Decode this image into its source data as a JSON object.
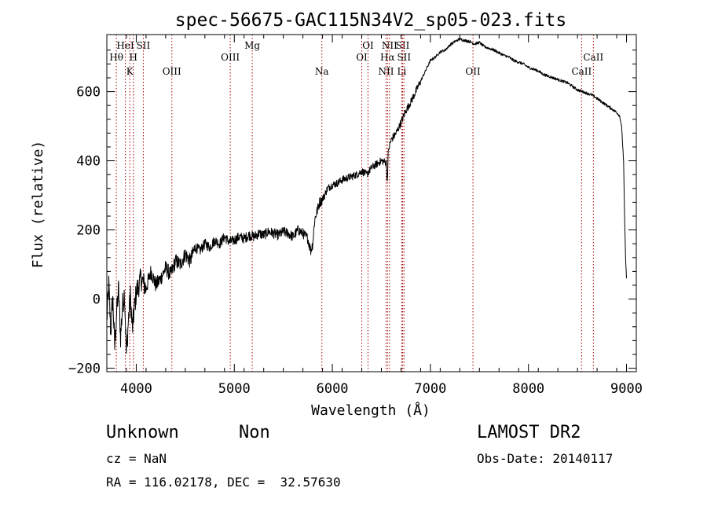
{
  "chart_data": {
    "type": "line",
    "title": "spec-56675-GAC115N34V2_sp05-023.fits",
    "xlabel": "Wavelength (Å)",
    "ylabel": "Flux (relative)",
    "xlim": [
      3700,
      9100
    ],
    "ylim": [
      -210,
      765
    ],
    "x_ticks": [
      4000,
      5000,
      6000,
      7000,
      8000,
      9000
    ],
    "x_tick_labels": [
      "4000",
      "5000",
      "6000",
      "7000",
      "8000",
      "9000"
    ],
    "y_ticks": [
      -200,
      0,
      200,
      400,
      600
    ],
    "y_tick_labels": [
      "−200",
      "0",
      "200",
      "400",
      "600"
    ],
    "line_color": "#000000",
    "marker_color": "#aa0000",
    "grid": false,
    "series": [
      {
        "x": [
          3700,
          3720,
          3740,
          3760,
          3780,
          3800,
          3820,
          3840,
          3860,
          3880,
          3900,
          3920,
          3940,
          3960,
          3980,
          4000,
          4050,
          4100,
          4150,
          4200,
          4250,
          4300,
          4350,
          4400,
          4450,
          4500,
          4550,
          4600,
          4650,
          4700,
          4750,
          4800,
          4850,
          4900,
          4950,
          5000,
          5050,
          5100,
          5150,
          5200,
          5250,
          5300,
          5350,
          5400,
          5450,
          5500,
          5550,
          5600,
          5650,
          5700,
          5750,
          5780,
          5800,
          5820,
          5850,
          5870,
          5890,
          5900,
          5920,
          5950,
          6000,
          6050,
          6100,
          6150,
          6200,
          6250,
          6300,
          6350,
          6400,
          6450,
          6500,
          6550,
          6560,
          6570,
          6580,
          6600,
          6650,
          6700,
          6750,
          6800,
          6850,
          6900,
          6950,
          7000,
          7050,
          7100,
          7150,
          7200,
          7250,
          7300,
          7350,
          7400,
          7450,
          7500,
          7550,
          7600,
          7650,
          7700,
          7750,
          7800,
          7850,
          7900,
          7950,
          8000,
          8050,
          8100,
          8150,
          8200,
          8250,
          8300,
          8350,
          8400,
          8450,
          8500,
          8550,
          8600,
          8650,
          8700,
          8750,
          8800,
          8850,
          8900,
          8930,
          8950,
          8970,
          8980,
          8990,
          9000
        ],
        "y": [
          -60,
          40,
          -100,
          10,
          -140,
          -40,
          30,
          -110,
          -20,
          20,
          -160,
          -60,
          10,
          -90,
          -30,
          20,
          60,
          30,
          80,
          40,
          60,
          90,
          70,
          110,
          100,
          130,
          110,
          150,
          140,
          160,
          150,
          170,
          160,
          180,
          165,
          170,
          180,
          175,
          185,
          180,
          190,
          185,
          195,
          190,
          185,
          195,
          190,
          180,
          200,
          190,
          175,
          140,
          160,
          230,
          260,
          280,
          285,
          290,
          300,
          320,
          330,
          335,
          345,
          350,
          355,
          360,
          370,
          360,
          380,
          390,
          400,
          395,
          340,
          420,
          440,
          460,
          480,
          510,
          545,
          570,
          600,
          630,
          660,
          690,
          700,
          715,
          720,
          735,
          745,
          752,
          748,
          745,
          738,
          742,
          730,
          725,
          720,
          712,
          705,
          700,
          690,
          685,
          680,
          670,
          665,
          660,
          650,
          645,
          640,
          635,
          630,
          625,
          615,
          605,
          600,
          595,
          590,
          580,
          570,
          560,
          550,
          540,
          530,
          500,
          400,
          250,
          120,
          60
        ]
      }
    ],
    "line_markers": [
      {
        "x": 3797,
        "label": "Hθ",
        "row": 2
      },
      {
        "x": 3889,
        "label": "HeI",
        "row": 1
      },
      {
        "x": 3934,
        "label": "K",
        "row": 3
      },
      {
        "x": 3970,
        "label": "H",
        "row": 2
      },
      {
        "x": 4072,
        "label": "SII",
        "row": 1
      },
      {
        "x": 4363,
        "label": "OIII",
        "row": 3
      },
      {
        "x": 4959,
        "label": "OIII",
        "row": 2
      },
      {
        "x": 5183,
        "label": "Mg",
        "row": 1
      },
      {
        "x": 5893,
        "label": "Na",
        "row": 3
      },
      {
        "x": 6300,
        "label": "OI",
        "row": 2
      },
      {
        "x": 6364,
        "label": "OI",
        "row": 1
      },
      {
        "x": 6548,
        "label": "NII",
        "row": 3
      },
      {
        "x": 6563,
        "label": "Hα",
        "row": 2
      },
      {
        "x": 6583,
        "label": "NII",
        "row": 1
      },
      {
        "x": 6708,
        "label": "Li",
        "row": 3
      },
      {
        "x": 6717,
        "label": "SII",
        "row": 1
      },
      {
        "x": 6731,
        "label": "SII",
        "row": 2
      },
      {
        "x": 7434,
        "label": "OII",
        "row": 3
      },
      {
        "x": 8542,
        "label": "CaII",
        "row": 3
      },
      {
        "x": 8662,
        "label": "CaII",
        "row": 2
      }
    ]
  },
  "info": {
    "object_class": "Unknown",
    "object_subclass": "Non",
    "survey": "LAMOST DR2",
    "redshift": "cz = NaN",
    "obs_date": "Obs-Date: 20140117",
    "coords": "RA = 116.02178, DEC =  32.57630"
  }
}
